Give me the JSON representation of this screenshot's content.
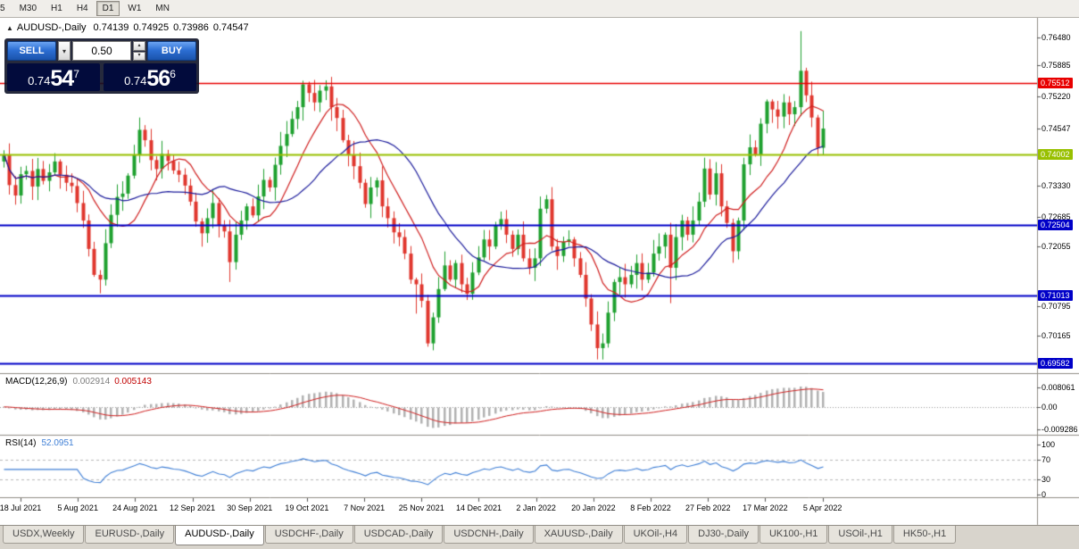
{
  "toolbar": {
    "buttons": [
      {
        "label": "5",
        "active": false,
        "cropped": true
      },
      {
        "label": "M30",
        "active": false
      },
      {
        "label": "H1",
        "active": false
      },
      {
        "label": "H4",
        "active": false
      },
      {
        "label": "D1",
        "active": true
      },
      {
        "label": "W1",
        "active": false
      },
      {
        "label": "MN",
        "active": false
      }
    ]
  },
  "chart_header": {
    "symbol_period": "AUDUSD-,Daily",
    "open": "0.74139",
    "high": "0.74925",
    "low": "0.73986",
    "close": "0.74547"
  },
  "trade_panel": {
    "sell_label": "SELL",
    "buy_label": "BUY",
    "volume": "0.50",
    "bid": {
      "prefix": "0.74",
      "digits": "54",
      "sup": "7"
    },
    "ask": {
      "prefix": "0.74",
      "digits": "56",
      "sup": "6"
    }
  },
  "macd_panel": {
    "title": "MACD(12,26,9)",
    "value_main": "0.002914",
    "value_signal": "0.005143",
    "ticks": [
      "0.008061",
      "0.00",
      "-0.009286"
    ]
  },
  "rsi_panel": {
    "title": "RSI(14)",
    "value": "52.0951",
    "ticks": [
      "100",
      "70",
      "30",
      "0"
    ]
  },
  "price_axis": {
    "ticks": [
      "0.76480",
      "0.75885",
      "0.75220",
      "0.74547",
      "0.73330",
      "0.72685",
      "0.72055",
      "0.70795",
      "0.70165"
    ],
    "markers": [
      {
        "label": "0.75512",
        "price": 0.75512,
        "bg": "#e80000",
        "fg": "#ffffff"
      },
      {
        "label": "0.74002",
        "price": 0.74002,
        "bg": "#98c000",
        "fg": "#ffffff"
      },
      {
        "label": "0.72504",
        "price": 0.72504,
        "bg": "#0000c8",
        "fg": "#ffffff"
      },
      {
        "label": "0.71013",
        "price": 0.71013,
        "bg": "#0000c8",
        "fg": "#ffffff"
      },
      {
        "label": "0.69582",
        "price": 0.69582,
        "bg": "#0000c8",
        "fg": "#ffffff"
      }
    ]
  },
  "date_axis": [
    "18 Jul 2021",
    "5 Aug 2021",
    "24 Aug 2021",
    "12 Sep 2021",
    "30 Sep 2021",
    "19 Oct 2021",
    "7 Nov 2021",
    "25 Nov 2021",
    "14 Dec 2021",
    "2 Jan 2022",
    "20 Jan 2022",
    "8 Feb 2022",
    "27 Feb 2022",
    "17 Mar 2022",
    "5 Apr 2022"
  ],
  "tabs": {
    "items": [
      "USDX,Weekly",
      "EURUSD-,Daily",
      "AUDUSD-,Daily",
      "USDCHF-,Daily",
      "USDCAD-,Daily",
      "USDCNH-,Daily",
      "XAUUSD-,Daily",
      "UKOil-,H4",
      "DJ30-,Daily",
      "UK100-,H1",
      "USOil-,H1",
      "HK50-,H1"
    ],
    "active": "AUDUSD-,Daily"
  },
  "chart_data": {
    "type": "candlestick",
    "symbol": "AUDUSD-",
    "period": "Daily",
    "ohlc_current": {
      "open": 0.74139,
      "high": 0.74925,
      "low": 0.73986,
      "close": 0.74547
    },
    "first_open": 0.7385,
    "closes": [
      0.74,
      0.7335,
      0.7313,
      0.7358,
      0.7365,
      0.7332,
      0.7369,
      0.7344,
      0.7362,
      0.7385,
      0.7357,
      0.734,
      0.7333,
      0.7297,
      0.726,
      0.72,
      0.7145,
      0.7135,
      0.7212,
      0.7272,
      0.731,
      0.7317,
      0.7355,
      0.74,
      0.7452,
      0.743,
      0.7388,
      0.7369,
      0.7401,
      0.7386,
      0.7366,
      0.7357,
      0.7334,
      0.73,
      0.7258,
      0.7233,
      0.7265,
      0.7297,
      0.725,
      0.7237,
      0.7172,
      0.723,
      0.726,
      0.729,
      0.7271,
      0.7311,
      0.7346,
      0.733,
      0.7378,
      0.7418,
      0.7443,
      0.7475,
      0.75,
      0.7548,
      0.753,
      0.751,
      0.7535,
      0.7544,
      0.75,
      0.7477,
      0.743,
      0.74,
      0.7375,
      0.734,
      0.7295,
      0.733,
      0.7345,
      0.729,
      0.7265,
      0.7235,
      0.7225,
      0.719,
      0.7135,
      0.7125,
      0.709,
      0.7,
      0.7055,
      0.7115,
      0.7165,
      0.7135,
      0.717,
      0.7125,
      0.7105,
      0.715,
      0.7182,
      0.722,
      0.7205,
      0.725,
      0.7263,
      0.723,
      0.72,
      0.723,
      0.718,
      0.716,
      0.718,
      0.7285,
      0.7305,
      0.7205,
      0.7185,
      0.7215,
      0.722,
      0.718,
      0.7145,
      0.7095,
      0.704,
      0.699,
      0.7,
      0.7065,
      0.713,
      0.714,
      0.7125,
      0.7145,
      0.717,
      0.7135,
      0.715,
      0.719,
      0.7205,
      0.723,
      0.716,
      0.7225,
      0.726,
      0.723,
      0.726,
      0.73,
      0.737,
      0.7315,
      0.736,
      0.729,
      0.7255,
      0.7195,
      0.726,
      0.7379,
      0.7415,
      0.74,
      0.7465,
      0.7512,
      0.7495,
      0.748,
      0.751,
      0.7485,
      0.75,
      0.7577,
      0.7525,
      0.7478,
      0.7414,
      0.74547
    ],
    "wick_highs": {
      "24": 0.7478,
      "53": 0.7556,
      "96": 0.7314,
      "141": 0.7661,
      "145": 0.74925
    },
    "wick_lows": {
      "17": 0.7106,
      "40": 0.713,
      "73": 0.7063,
      "75": 0.6993,
      "105": 0.6966,
      "118": 0.7085,
      "145": 0.73986
    },
    "x_labels": [
      "18 Jul 2021",
      "5 Aug 2021",
      "24 Aug 2021",
      "12 Sep 2021",
      "30 Sep 2021",
      "19 Oct 2021",
      "7 Nov 2021",
      "25 Nov 2021",
      "14 Dec 2021",
      "2 Jan 2022",
      "20 Jan 2022",
      "8 Feb 2022",
      "27 Feb 2022",
      "17 Mar 2022",
      "5 Apr 2022"
    ],
    "first_label_bar": 3,
    "bars_per_label": 10.14,
    "y_range": [
      0.6937,
      0.7689
    ],
    "hlines": [
      {
        "price": 0.75512,
        "color": "#e80000",
        "width": 1.5
      },
      {
        "price": 0.74002,
        "color": "#98c000",
        "width": 2
      },
      {
        "price": 0.72504,
        "color": "#0000c8",
        "width": 2
      },
      {
        "price": 0.71013,
        "color": "#0000c8",
        "width": 2
      },
      {
        "price": 0.69582,
        "color": "#0000c8",
        "width": 2
      }
    ],
    "ma": {
      "fast_period": 10,
      "fast_color": "#d01f1f",
      "slow_period": 21,
      "slow_color": "#1c1c9c"
    },
    "candle_up_color": "#1fa12f",
    "candle_down_color": "#e0372e",
    "macd": {
      "fast": 12,
      "slow": 26,
      "signal": 9,
      "range": [
        -0.0107,
        0.0127
      ],
      "hist_color": "#b2b2b2",
      "signal_color": "#d01f1f",
      "current_main": 0.002914,
      "current_signal": 0.005143
    },
    "rsi": {
      "period": 14,
      "range": [
        -3,
        115
      ],
      "color": "#3f7fd6",
      "levels": [
        70,
        30
      ],
      "current": 52.0951
    }
  }
}
